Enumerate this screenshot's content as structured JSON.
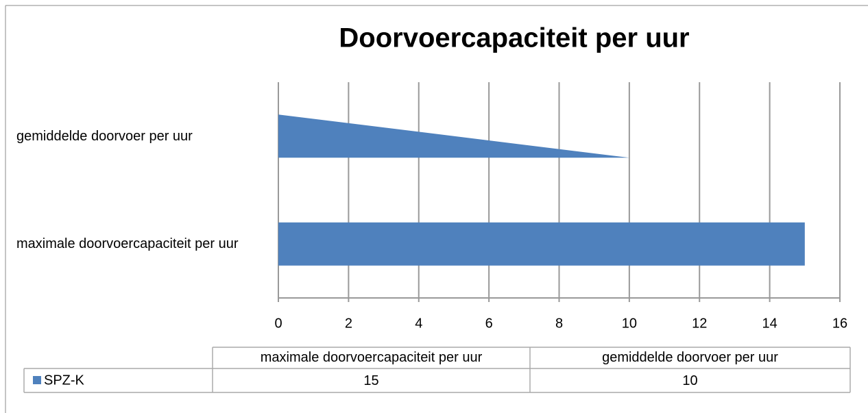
{
  "chart_data": {
    "type": "bar",
    "orientation": "horizontal",
    "title": "Doorvoercapaciteit per uur",
    "categories": [
      "maximale doorvoercapaciteit per uur",
      "gemiddelde doorvoer per uur"
    ],
    "series": [
      {
        "name": "SPZ-K",
        "color": "#4f81bd",
        "values": [
          15,
          10
        ]
      }
    ],
    "xlim": [
      0,
      16
    ],
    "xticks": [
      0,
      2,
      4,
      6,
      8,
      10,
      12,
      14,
      16
    ],
    "grid": true,
    "data_table": true
  }
}
